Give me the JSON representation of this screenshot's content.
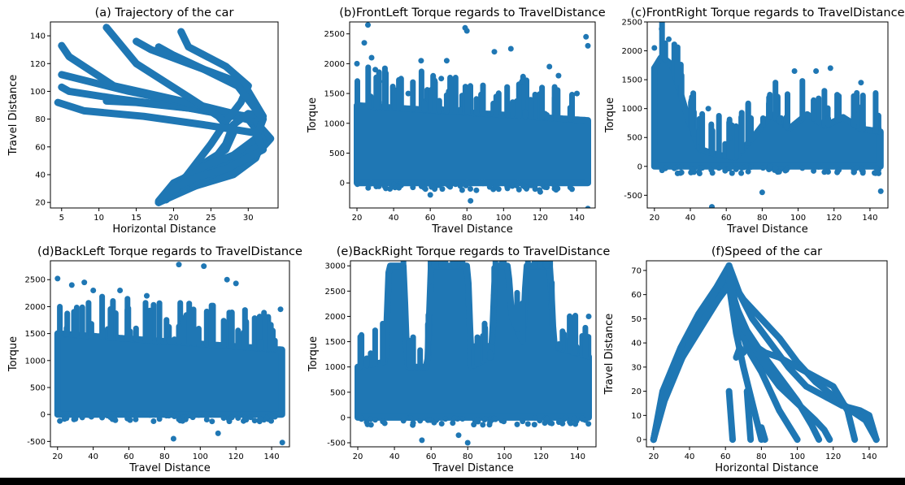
{
  "colors": {
    "series": "#1f77b4",
    "axis": "#000000",
    "background": "#ffffff"
  },
  "chart_data": [
    {
      "id": "a",
      "type": "line",
      "title": "(a) Trajectory of the car",
      "xlabel": "Horizontal Distance",
      "ylabel": "Travel Distance",
      "xlim": [
        3.5,
        34
      ],
      "ylim": [
        16,
        150
      ],
      "xticks": [
        5,
        10,
        15,
        20,
        25,
        30
      ],
      "yticks": [
        20,
        40,
        60,
        80,
        100,
        120,
        140
      ],
      "grid": false,
      "series": [
        {
          "x": [
            18,
            22,
            27,
            31,
            32,
            30,
            22,
            12,
            6,
            5
          ],
          "y": [
            20,
            30,
            40,
            55,
            70,
            82,
            88,
            95,
            100,
            103
          ]
        },
        {
          "x": [
            18,
            23,
            28,
            31,
            32,
            30,
            22,
            15,
            11
          ],
          "y": [
            20,
            32,
            40,
            52,
            66,
            80,
            88,
            92,
            93
          ]
        },
        {
          "x": [
            18,
            22,
            26,
            31,
            33,
            31,
            23,
            14,
            8,
            5
          ],
          "y": [
            20,
            32,
            42,
            54,
            66,
            78,
            90,
            100,
            108,
            112
          ]
        },
        {
          "x": [
            18,
            20,
            24,
            29,
            32,
            31,
            22,
            12,
            8,
            6,
            5
          ],
          "y": [
            21,
            34,
            44,
            52,
            64,
            80,
            92,
            104,
            118,
            125,
            133
          ]
        },
        {
          "x": [
            19,
            21,
            24,
            27,
            28,
            26,
            22,
            15,
            11
          ],
          "y": [
            22,
            36,
            48,
            58,
            70,
            82,
            96,
            120,
            146
          ]
        },
        {
          "x": [
            19,
            22,
            25,
            27,
            28,
            30,
            32,
            30,
            24,
            20,
            18
          ],
          "y": [
            22,
            34,
            48,
            62,
            76,
            84,
            82,
            100,
            116,
            126,
            132
          ]
        },
        {
          "x": [
            19,
            21,
            23,
            25,
            27,
            29,
            30,
            27,
            22,
            21
          ],
          "y": [
            22,
            34,
            48,
            62,
            78,
            92,
            104,
            118,
            132,
            143
          ]
        },
        {
          "x": [
            19,
            21,
            24,
            28,
            31,
            32,
            28,
            22,
            17,
            15
          ],
          "y": [
            22,
            34,
            46,
            54,
            66,
            80,
            108,
            120,
            130,
            136
          ]
        },
        {
          "x": [
            18,
            20,
            23,
            27,
            32,
            31,
            24,
            16,
            8,
            4.5
          ],
          "y": [
            20,
            30,
            38,
            44,
            58,
            70,
            76,
            82,
            86,
            92
          ]
        }
      ]
    },
    {
      "id": "b",
      "type": "scatter",
      "title": "(b)FrontLeft Torque regards to TravelDistance",
      "xlabel": "Travel Distance",
      "ylabel": "Torque",
      "xlim": [
        16,
        150
      ],
      "ylim": [
        -420,
        2700
      ],
      "xticks": [
        20,
        40,
        60,
        80,
        100,
        120,
        140
      ],
      "yticks": [
        0,
        500,
        1000,
        1500,
        2000,
        2500
      ],
      "grid": false,
      "band": {
        "x": [
          20,
          146
        ],
        "low": [
          0,
          0
        ],
        "high": [
          1300,
          1050
        ]
      },
      "outliers": {
        "x": [
          20,
          24,
          26,
          28,
          30,
          35,
          48,
          55,
          66,
          69,
          79,
          80,
          95,
          104,
          110,
          125,
          130,
          140,
          145,
          146,
          146,
          38,
          60,
          82,
          120
        ],
        "y": [
          2000,
          2350,
          2650,
          2100,
          1900,
          1700,
          1500,
          2050,
          1750,
          2050,
          2600,
          2550,
          2200,
          2250,
          1700,
          1950,
          1800,
          1500,
          2450,
          2300,
          -430,
          -100,
          -200,
          -300,
          -150
        ]
      }
    },
    {
      "id": "c",
      "type": "scatter",
      "title": "(c)FrontRight Torque regards to TravelDistance",
      "xlabel": "Travel Distance",
      "ylabel": "Torque",
      "xlim": [
        16,
        150
      ],
      "ylim": [
        -720,
        2500
      ],
      "xticks": [
        20,
        40,
        60,
        80,
        100,
        120,
        140
      ],
      "yticks": [
        -500,
        0,
        500,
        1000,
        1500,
        2000,
        2500
      ],
      "grid": false,
      "band": {
        "x": [
          20,
          24,
          30,
          38,
          45,
          55,
          65,
          75,
          85,
          95,
          105,
          115,
          125,
          135,
          146
        ],
        "low": [
          0,
          0,
          0,
          0,
          0,
          0,
          0,
          0,
          0,
          0,
          0,
          0,
          0,
          0,
          0
        ],
        "high": [
          1700,
          1900,
          1750,
          900,
          300,
          200,
          150,
          500,
          900,
          650,
          900,
          700,
          850,
          650,
          600
        ]
      },
      "outliers": {
        "x": [
          24,
          28,
          20,
          50,
          52,
          62,
          80,
          98,
          110,
          118,
          135,
          146
        ],
        "y": [
          2380,
          2200,
          2050,
          1000,
          -700,
          500,
          -450,
          1650,
          1650,
          1700,
          1450,
          -430
        ]
      }
    },
    {
      "id": "d",
      "type": "scatter",
      "title": "(d)BackLeft Torque regards to TravelDistance",
      "xlabel": "Travel Distance",
      "ylabel": "Torque",
      "xlim": [
        16,
        150
      ],
      "ylim": [
        -600,
        2850
      ],
      "xticks": [
        20,
        40,
        60,
        80,
        100,
        120,
        140
      ],
      "yticks": [
        -500,
        0,
        500,
        1000,
        1500,
        2000,
        2500
      ],
      "grid": false,
      "band": {
        "x": [
          20,
          146
        ],
        "low": [
          0,
          0
        ],
        "high": [
          1500,
          1200
        ]
      },
      "outliers": {
        "x": [
          20,
          28,
          35,
          40,
          55,
          70,
          88,
          102,
          115,
          120,
          145,
          146,
          85,
          110
        ],
        "y": [
          2520,
          2400,
          2450,
          2300,
          2300,
          2200,
          2780,
          2750,
          2500,
          2430,
          1950,
          -520,
          -450,
          -350
        ]
      }
    },
    {
      "id": "e",
      "type": "scatter",
      "title": "(e)BackRight Torque regards to TravelDistance",
      "xlabel": "Travel Distance",
      "ylabel": "Torque",
      "xlim": [
        16,
        150
      ],
      "ylim": [
        -580,
        3100
      ],
      "xticks": [
        20,
        40,
        60,
        80,
        100,
        120,
        140
      ],
      "yticks": [
        -500,
        0,
        500,
        1000,
        1500,
        2000,
        2500,
        3000
      ],
      "grid": false,
      "band": {
        "x": [
          20,
          35,
          37,
          45,
          47,
          58,
          60,
          80,
          82,
          93,
          95,
          102,
          104,
          110,
          112,
          125,
          127,
          146
        ],
        "low": [
          0,
          0,
          0,
          0,
          0,
          0,
          0,
          0,
          0,
          0,
          0,
          0,
          0,
          0,
          0,
          0,
          0,
          0
        ],
        "high": [
          1000,
          1100,
          3000,
          3000,
          1000,
          1000,
          3000,
          3000,
          1000,
          1200,
          3000,
          3000,
          2000,
          1500,
          3000,
          3000,
          1400,
          1200
        ]
      },
      "outliers": {
        "x": [
          22,
          50,
          55,
          75,
          80,
          146
        ],
        "y": [
          1560,
          -150,
          -450,
          -350,
          -500,
          2000
        ]
      }
    },
    {
      "id": "f",
      "type": "line",
      "title": "(f)Speed of the car",
      "xlabel": "Horizontal Distance",
      "ylabel": "Travel Distance",
      "xlim": [
        16,
        150
      ],
      "ylim": [
        -3,
        74
      ],
      "xticks": [
        20,
        40,
        60,
        80,
        100,
        120,
        140
      ],
      "yticks": [
        0,
        10,
        20,
        30,
        40,
        50,
        60,
        70
      ],
      "grid": false,
      "series": [
        {
          "x": [
            20,
            25,
            35,
            45,
            55,
            62,
            68,
            75,
            85,
            95,
            105,
            115,
            125,
            135,
            140,
            144
          ],
          "y": [
            0,
            20,
            38,
            52,
            63,
            72,
            60,
            50,
            40,
            30,
            22,
            18,
            14,
            12,
            10,
            0
          ]
        },
        {
          "x": [
            20,
            25,
            35,
            45,
            55,
            62,
            66,
            70,
            80,
            90,
            100,
            110,
            115,
            118
          ],
          "y": [
            0,
            18,
            36,
            50,
            60,
            68,
            52,
            42,
            32,
            22,
            15,
            8,
            4,
            0
          ]
        },
        {
          "x": [
            20,
            26,
            36,
            46,
            56,
            63,
            70,
            80,
            90,
            100,
            110,
            120,
            130,
            138,
            144
          ],
          "y": [
            0,
            18,
            34,
            46,
            58,
            66,
            58,
            50,
            42,
            32,
            24,
            18,
            12,
            8,
            0
          ]
        },
        {
          "x": [
            20,
            25,
            35,
            45,
            55,
            62,
            67,
            72,
            80,
            90,
            100
          ],
          "y": [
            0,
            18,
            36,
            50,
            62,
            70,
            50,
            38,
            28,
            12,
            0
          ]
        },
        {
          "x": [
            20,
            26,
            36,
            46,
            56,
            62,
            66,
            70,
            75,
            80
          ],
          "y": [
            0,
            16,
            34,
            48,
            58,
            64,
            44,
            30,
            15,
            0
          ]
        },
        {
          "x": [
            62,
            65,
            70,
            78,
            82,
            90,
            100,
            110,
            120,
            128,
            132
          ],
          "y": [
            72,
            58,
            46,
            38,
            36,
            34,
            30,
            26,
            22,
            12,
            0
          ]
        },
        {
          "x": [
            62,
            66,
            72,
            80,
            90,
            100,
            108,
            112
          ],
          "y": [
            66,
            55,
            45,
            36,
            26,
            16,
            6,
            0
          ]
        },
        {
          "x": [
            66,
            68,
            70
          ],
          "y": [
            34,
            38,
            36
          ]
        },
        {
          "x": [
            62,
            64
          ],
          "y": [
            20,
            0
          ]
        },
        {
          "x": [
            72,
            74
          ],
          "y": [
            20,
            0
          ]
        },
        {
          "x": [
            80,
            82
          ],
          "y": [
            5,
            0
          ]
        },
        {
          "x": [
            138,
            140,
            142,
            144
          ],
          "y": [
            10,
            8,
            4,
            0
          ]
        }
      ]
    }
  ]
}
